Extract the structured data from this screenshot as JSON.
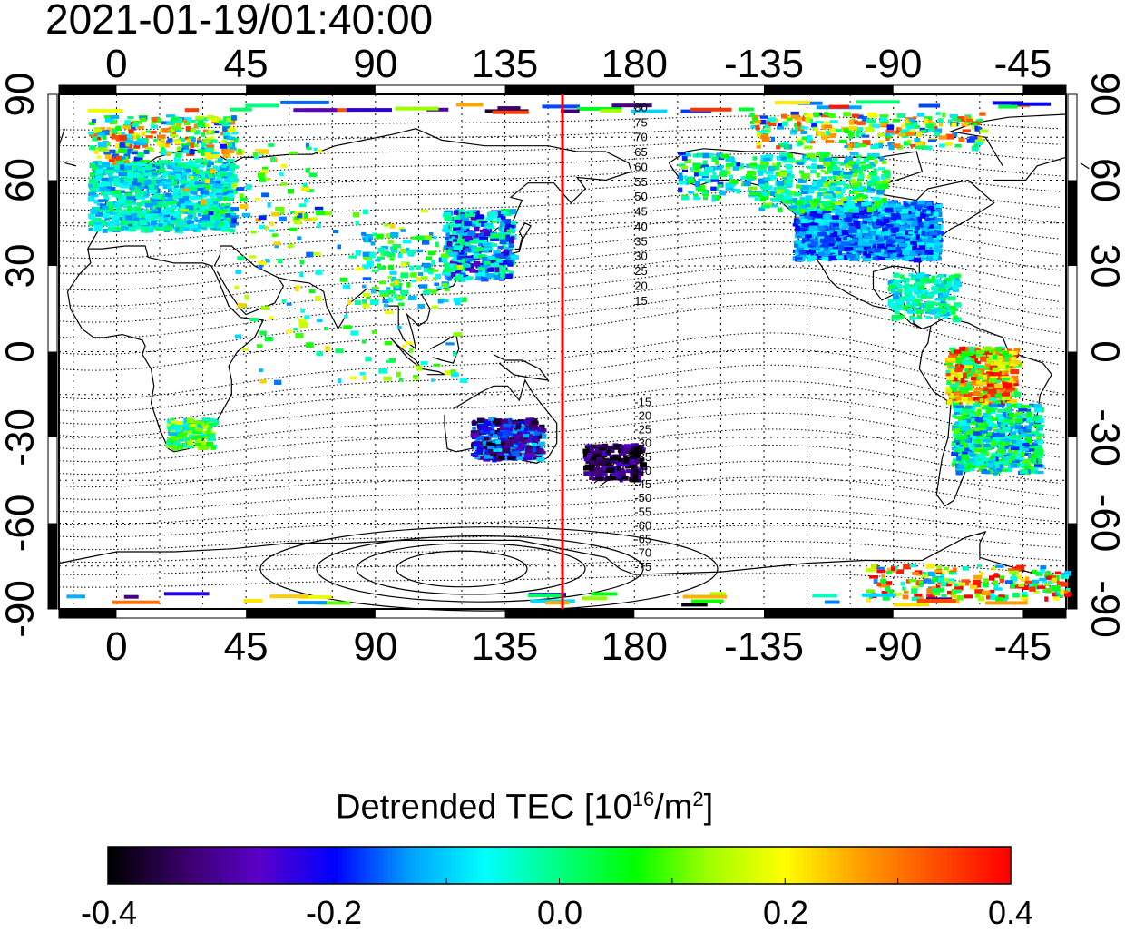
{
  "title": "2021-01-19/01:40:00",
  "colorbar": {
    "label_prefix": "Detrended TEC  [10",
    "label_sup1": "16",
    "label_mid": "/m",
    "label_sup2": "2",
    "label_suffix": "]",
    "ticks": [
      "-0.4",
      "-0.2",
      "0.0",
      "0.2",
      "0.4"
    ],
    "range": [
      -0.4,
      0.4
    ],
    "colors": [
      "#000000",
      "#3a006a",
      "#5a00c8",
      "#0000ff",
      "#00a0ff",
      "#00ffff",
      "#00ff80",
      "#00ff00",
      "#a0ff00",
      "#ffff00",
      "#ffa000",
      "#ff5000",
      "#ff0000"
    ]
  },
  "map": {
    "x_tick_labels_top": [
      "0",
      "45",
      "90",
      "135",
      "180",
      "-135",
      "-90",
      "-45"
    ],
    "x_tick_labels_bottom": [
      "0",
      "45",
      "90",
      "135",
      "180",
      "-135",
      "-90",
      "-45"
    ],
    "y_tick_labels": [
      "90",
      "60",
      "30",
      "0",
      "-30",
      "-60",
      "-90"
    ],
    "lon_range": [
      -20,
      330
    ],
    "lat_range": [
      -90,
      90
    ],
    "marker_longitude": 155,
    "marker_color": "#ff0000",
    "contour_labels_north": [
      "80",
      "75",
      "70",
      "65",
      "60",
      "55",
      "50",
      "45",
      "40",
      "35",
      "30",
      "25",
      "20",
      "15"
    ],
    "contour_labels_south": [
      "-15",
      "-20",
      "-25",
      "-30",
      "-35",
      "-40",
      "-45",
      "-50",
      "-55",
      "-60",
      "-65",
      "-70",
      "-75"
    ]
  }
}
